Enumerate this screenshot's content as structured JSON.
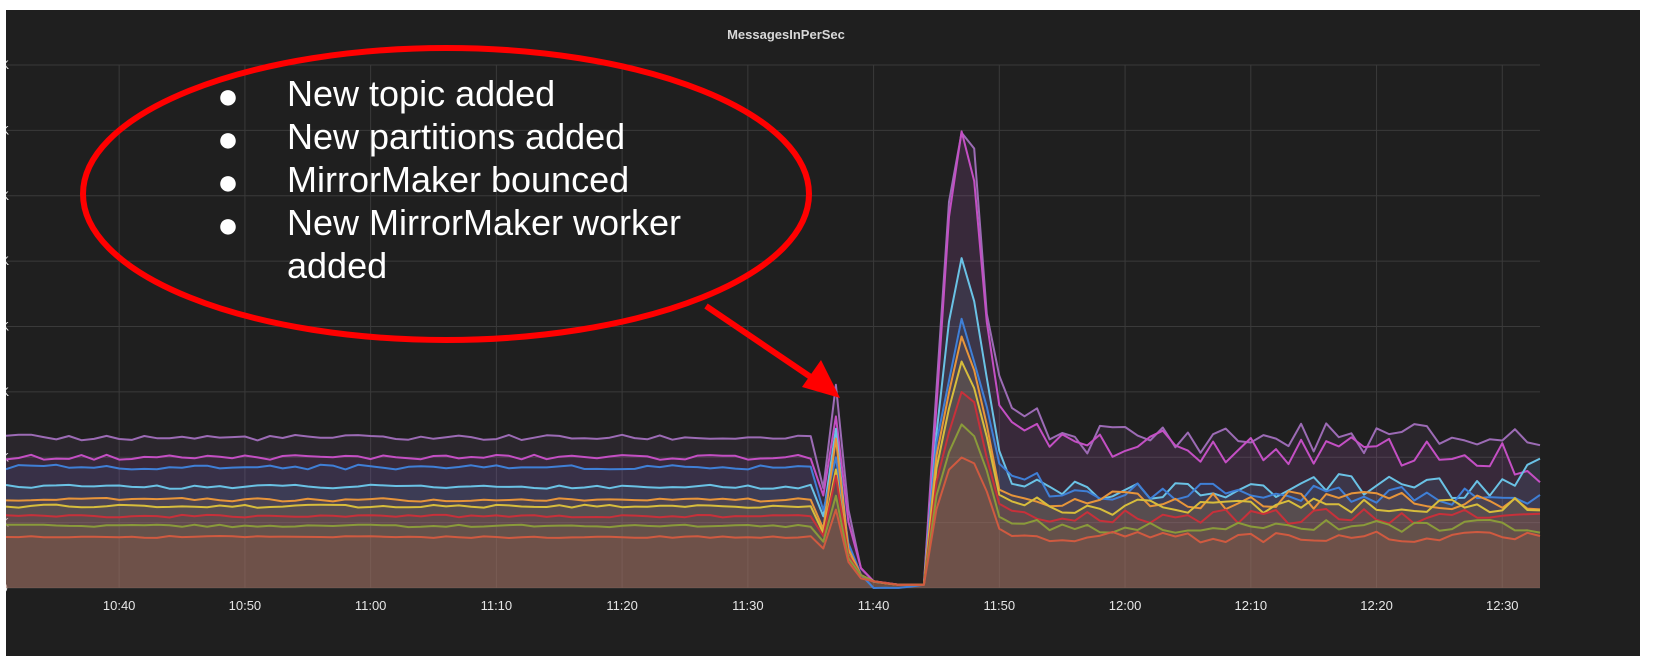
{
  "chart_data": {
    "type": "area",
    "title": "MessagesInPerSec",
    "xlabel": "",
    "ylabel": "",
    "x_tick_labels": [
      "10:40",
      "10:50",
      "11:00",
      "11:10",
      "11:20",
      "11:30",
      "11:40",
      "11:50",
      "12:00",
      "12:10",
      "12:20",
      "12:30"
    ],
    "y_tick_labels": [
      "0",
      "K",
      "K",
      "K",
      "K",
      "K",
      "K",
      "K",
      "K",
      "K"
    ],
    "x_range_minutes": [
      "10:31",
      "12:33"
    ],
    "y_range": [
      0,
      8
    ],
    "grid": true,
    "legend": "none",
    "keyframes_x": [
      "10:31",
      "11:35",
      "11:36",
      "11:37",
      "11:38",
      "11:39",
      "11:40",
      "11:42",
      "11:44",
      "11:45",
      "11:46",
      "11:47",
      "11:48",
      "11:49",
      "11:50",
      "11:51",
      "11:53",
      "11:56",
      "12:00",
      "12:10",
      "12:20",
      "12:30",
      "12:33"
    ],
    "series": [
      {
        "color": "#9c6bb5",
        "values": [
          2.3,
          2.3,
          1.5,
          3.1,
          1.2,
          0.3,
          0.1,
          0.05,
          0.05,
          3.0,
          6.0,
          6.9,
          6.6,
          4.2,
          3.2,
          2.8,
          2.5,
          2.3,
          2.3,
          2.3,
          2.3,
          2.3,
          2.3
        ]
      },
      {
        "color": "#c44fc4",
        "values": [
          2.0,
          2.0,
          1.4,
          2.6,
          1.0,
          0.3,
          0.1,
          0.05,
          0.05,
          2.8,
          5.7,
          6.95,
          6.2,
          4.0,
          2.8,
          2.5,
          2.3,
          2.2,
          2.2,
          2.1,
          2.1,
          2.0,
          1.6
        ]
      },
      {
        "color": "#6ac2e5",
        "values": [
          1.55,
          1.55,
          1.1,
          2.4,
          0.6,
          0.2,
          0.1,
          0.05,
          0.05,
          2.4,
          4.0,
          5.05,
          4.4,
          3.2,
          2.1,
          1.6,
          1.5,
          1.5,
          1.5,
          1.5,
          1.6,
          1.5,
          1.8
        ]
      },
      {
        "color": "#3f7fd6",
        "values": [
          1.85,
          1.85,
          1.2,
          2.0,
          0.7,
          0.2,
          0.0,
          0.0,
          0.05,
          2.2,
          3.2,
          4.2,
          3.5,
          2.8,
          1.9,
          1.7,
          1.6,
          1.5,
          1.5,
          1.45,
          1.45,
          1.4,
          1.4
        ]
      },
      {
        "color": "#e7953a",
        "values": [
          1.35,
          1.35,
          0.9,
          2.3,
          0.6,
          0.2,
          0.1,
          0.05,
          0.05,
          2.0,
          3.0,
          3.9,
          3.3,
          2.5,
          1.5,
          1.4,
          1.35,
          1.35,
          1.35,
          1.35,
          1.35,
          1.35,
          1.35
        ]
      },
      {
        "color": "#d7bd3c",
        "values": [
          1.25,
          1.25,
          0.85,
          1.8,
          0.5,
          0.2,
          0.1,
          0.05,
          0.05,
          1.8,
          2.7,
          3.4,
          3.0,
          2.3,
          1.4,
          1.3,
          1.25,
          1.25,
          1.25,
          1.25,
          1.25,
          1.25,
          1.25
        ]
      },
      {
        "color": "#c8303a",
        "values": [
          1.1,
          1.1,
          0.8,
          1.7,
          0.5,
          0.2,
          0.1,
          0.05,
          0.05,
          1.6,
          2.4,
          3.0,
          2.8,
          2.0,
          1.3,
          1.2,
          1.1,
          1.1,
          1.1,
          1.1,
          1.1,
          1.1,
          1.1
        ]
      },
      {
        "color": "#8a9a3a",
        "values": [
          0.95,
          0.95,
          0.7,
          1.4,
          0.45,
          0.2,
          0.1,
          0.05,
          0.05,
          1.4,
          2.1,
          2.5,
          2.3,
          1.8,
          1.1,
          1.0,
          0.95,
          0.95,
          0.95,
          0.95,
          0.95,
          0.95,
          0.95
        ]
      },
      {
        "color": "#d05a40",
        "values": [
          0.78,
          0.78,
          0.6,
          1.2,
          0.4,
          0.15,
          0.1,
          0.05,
          0.05,
          1.2,
          1.8,
          2.0,
          1.9,
          1.5,
          0.9,
          0.8,
          0.78,
          0.78,
          0.78,
          0.78,
          0.78,
          0.78,
          0.78
        ]
      }
    ]
  },
  "annotation": {
    "items": [
      "New topic added",
      "New partitions added",
      "MirrorMaker bounced",
      "New MirrorMaker worker",
      "added"
    ],
    "bullet": "●",
    "ellipse_color": "#ff0000",
    "arrow_color": "#ff0000"
  },
  "colors": {
    "background": "#1f1f1f",
    "grid": "#3a3a3a",
    "fill": "#d98a94"
  }
}
